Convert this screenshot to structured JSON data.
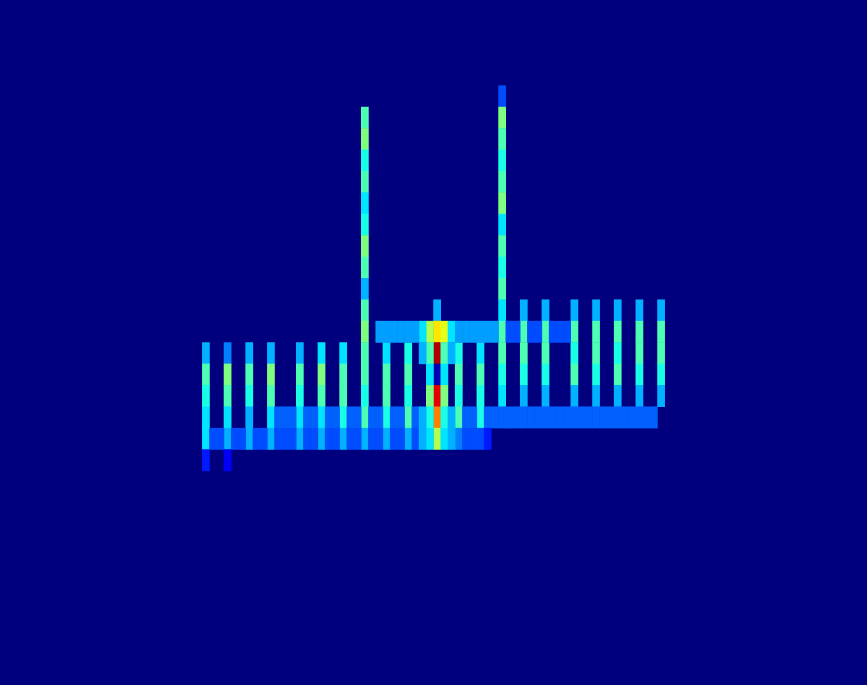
{
  "chart_data": {
    "type": "heatmap",
    "tick_labels": false,
    "columns": 120,
    "rows": 32,
    "color_range": [
      0,
      1
    ],
    "cells": [
      [
        50,
        5,
        0.45
      ],
      [
        50,
        6,
        0.5
      ],
      [
        50,
        7,
        0.4
      ],
      [
        50,
        8,
        0.45
      ],
      [
        50,
        9,
        0.35
      ],
      [
        50,
        10,
        0.4
      ],
      [
        50,
        11,
        0.5
      ],
      [
        50,
        12,
        0.45
      ],
      [
        50,
        13,
        0.3
      ],
      [
        50,
        14,
        0.45
      ],
      [
        50,
        15,
        0.5
      ],
      [
        69,
        4,
        0.2
      ],
      [
        69,
        5,
        0.5
      ],
      [
        69,
        6,
        0.45
      ],
      [
        69,
        7,
        0.4
      ],
      [
        69,
        8,
        0.45
      ],
      [
        69,
        9,
        0.5
      ],
      [
        69,
        10,
        0.35
      ],
      [
        69,
        11,
        0.45
      ],
      [
        69,
        12,
        0.4
      ],
      [
        69,
        13,
        0.45
      ],
      [
        28,
        16,
        0.3
      ],
      [
        28,
        17,
        0.45
      ],
      [
        28,
        18,
        0.4
      ],
      [
        28,
        19,
        0.35
      ],
      [
        28,
        20,
        0.35
      ],
      [
        31,
        16,
        0.25
      ],
      [
        31,
        17,
        0.5
      ],
      [
        31,
        18,
        0.45
      ],
      [
        31,
        19,
        0.35
      ],
      [
        31,
        20,
        0.3
      ],
      [
        34,
        16,
        0.3
      ],
      [
        34,
        17,
        0.45
      ],
      [
        34,
        18,
        0.4
      ],
      [
        34,
        19,
        0.3
      ],
      [
        34,
        20,
        0.3
      ],
      [
        37,
        16,
        0.3
      ],
      [
        37,
        17,
        0.5
      ],
      [
        37,
        18,
        0.45
      ],
      [
        37,
        19,
        0.35
      ],
      [
        37,
        20,
        0.3
      ],
      [
        41,
        16,
        0.3
      ],
      [
        41,
        17,
        0.45
      ],
      [
        41,
        18,
        0.4
      ],
      [
        41,
        19,
        0.35
      ],
      [
        41,
        20,
        0.3
      ],
      [
        44,
        16,
        0.35
      ],
      [
        44,
        17,
        0.5
      ],
      [
        44,
        18,
        0.45
      ],
      [
        44,
        19,
        0.35
      ],
      [
        44,
        20,
        0.3
      ],
      [
        47,
        16,
        0.35
      ],
      [
        47,
        17,
        0.45
      ],
      [
        47,
        18,
        0.45
      ],
      [
        47,
        19,
        0.4
      ],
      [
        47,
        20,
        0.3
      ],
      [
        50,
        16,
        0.45
      ],
      [
        50,
        17,
        0.45
      ],
      [
        50,
        18,
        0.4
      ],
      [
        50,
        19,
        0.45
      ],
      [
        50,
        20,
        0.3
      ],
      [
        53,
        16,
        0.35
      ],
      [
        53,
        17,
        0.45
      ],
      [
        53,
        18,
        0.45
      ],
      [
        53,
        19,
        0.4
      ],
      [
        53,
        20,
        0.3
      ],
      [
        56,
        16,
        0.4
      ],
      [
        56,
        17,
        0.45
      ],
      [
        56,
        18,
        0.4
      ],
      [
        56,
        19,
        0.45
      ],
      [
        56,
        20,
        0.3
      ],
      [
        63,
        16,
        0.4
      ],
      [
        63,
        17,
        0.45
      ],
      [
        63,
        18,
        0.4
      ],
      [
        63,
        19,
        0.45
      ],
      [
        63,
        20,
        0.25
      ],
      [
        66,
        16,
        0.35
      ],
      [
        66,
        17,
        0.45
      ],
      [
        66,
        18,
        0.4
      ],
      [
        66,
        19,
        0.4
      ],
      [
        66,
        20,
        0.2
      ],
      [
        69,
        14,
        0.35
      ],
      [
        69,
        15,
        0.45
      ],
      [
        69,
        16,
        0.45
      ],
      [
        69,
        17,
        0.4
      ],
      [
        69,
        18,
        0.35
      ],
      [
        72,
        14,
        0.3
      ],
      [
        72,
        15,
        0.45
      ],
      [
        72,
        16,
        0.45
      ],
      [
        72,
        17,
        0.4
      ],
      [
        72,
        18,
        0.3
      ],
      [
        75,
        14,
        0.3
      ],
      [
        75,
        15,
        0.45
      ],
      [
        75,
        16,
        0.45
      ],
      [
        75,
        17,
        0.4
      ],
      [
        75,
        18,
        0.3
      ],
      [
        79,
        14,
        0.3
      ],
      [
        79,
        15,
        0.45
      ],
      [
        79,
        16,
        0.4
      ],
      [
        79,
        17,
        0.45
      ],
      [
        79,
        18,
        0.3
      ],
      [
        82,
        14,
        0.3
      ],
      [
        82,
        15,
        0.45
      ],
      [
        82,
        16,
        0.45
      ],
      [
        82,
        17,
        0.4
      ],
      [
        82,
        18,
        0.3
      ],
      [
        85,
        14,
        0.3
      ],
      [
        85,
        15,
        0.45
      ],
      [
        85,
        16,
        0.4
      ],
      [
        85,
        17,
        0.45
      ],
      [
        85,
        18,
        0.3
      ],
      [
        88,
        14,
        0.3
      ],
      [
        88,
        15,
        0.45
      ],
      [
        88,
        16,
        0.45
      ],
      [
        88,
        17,
        0.4
      ],
      [
        88,
        18,
        0.3
      ],
      [
        91,
        14,
        0.3
      ],
      [
        91,
        15,
        0.45
      ],
      [
        91,
        16,
        0.45
      ],
      [
        91,
        17,
        0.4
      ],
      [
        91,
        18,
        0.3
      ],
      [
        60,
        14,
        0.3
      ],
      [
        60,
        15,
        0.65
      ],
      [
        60,
        16,
        0.95
      ],
      [
        60,
        17,
        0.05
      ],
      [
        60,
        18,
        0.9
      ],
      [
        60,
        19,
        0.75
      ],
      [
        60,
        20,
        0.55
      ],
      [
        59,
        15,
        0.55
      ],
      [
        59,
        16,
        0.45
      ],
      [
        59,
        17,
        0.35
      ],
      [
        59,
        18,
        0.5
      ],
      [
        59,
        19,
        0.4
      ],
      [
        59,
        20,
        0.35
      ],
      [
        61,
        15,
        0.6
      ],
      [
        61,
        16,
        0.45
      ],
      [
        61,
        17,
        0.35
      ],
      [
        61,
        18,
        0.5
      ],
      [
        61,
        19,
        0.4
      ],
      [
        61,
        20,
        0.35
      ],
      [
        58,
        15,
        0.35
      ],
      [
        58,
        16,
        0.3
      ],
      [
        62,
        15,
        0.35
      ],
      [
        62,
        16,
        0.3
      ],
      [
        38,
        19,
        0.22
      ],
      [
        39,
        19,
        0.22
      ],
      [
        40,
        19,
        0.22
      ],
      [
        42,
        19,
        0.22
      ],
      [
        43,
        19,
        0.22
      ],
      [
        45,
        19,
        0.22
      ],
      [
        46,
        19,
        0.22
      ],
      [
        48,
        19,
        0.22
      ],
      [
        49,
        19,
        0.22
      ],
      [
        51,
        19,
        0.22
      ],
      [
        52,
        19,
        0.22
      ],
      [
        54,
        19,
        0.22
      ],
      [
        55,
        19,
        0.22
      ],
      [
        57,
        19,
        0.22
      ],
      [
        58,
        19,
        0.3
      ],
      [
        62,
        19,
        0.3
      ],
      [
        64,
        19,
        0.22
      ],
      [
        65,
        19,
        0.22
      ],
      [
        67,
        19,
        0.22
      ],
      [
        68,
        19,
        0.22
      ],
      [
        69,
        19,
        0.22
      ],
      [
        70,
        19,
        0.22
      ],
      [
        71,
        19,
        0.22
      ],
      [
        72,
        19,
        0.22
      ],
      [
        73,
        19,
        0.22
      ],
      [
        74,
        19,
        0.22
      ],
      [
        75,
        19,
        0.22
      ],
      [
        76,
        19,
        0.22
      ],
      [
        77,
        19,
        0.22
      ],
      [
        78,
        19,
        0.22
      ],
      [
        79,
        19,
        0.22
      ],
      [
        80,
        19,
        0.22
      ],
      [
        81,
        19,
        0.22
      ],
      [
        82,
        19,
        0.22
      ],
      [
        83,
        19,
        0.22
      ],
      [
        84,
        19,
        0.22
      ],
      [
        85,
        19,
        0.22
      ],
      [
        86,
        19,
        0.22
      ],
      [
        87,
        19,
        0.22
      ],
      [
        88,
        19,
        0.22
      ],
      [
        89,
        19,
        0.22
      ],
      [
        90,
        19,
        0.22
      ],
      [
        29,
        20,
        0.2
      ],
      [
        30,
        20,
        0.2
      ],
      [
        32,
        20,
        0.2
      ],
      [
        33,
        20,
        0.2
      ],
      [
        35,
        20,
        0.2
      ],
      [
        36,
        20,
        0.2
      ],
      [
        38,
        20,
        0.2
      ],
      [
        39,
        20,
        0.2
      ],
      [
        40,
        20,
        0.2
      ],
      [
        42,
        20,
        0.2
      ],
      [
        43,
        20,
        0.2
      ],
      [
        45,
        20,
        0.2
      ],
      [
        46,
        20,
        0.2
      ],
      [
        48,
        20,
        0.2
      ],
      [
        49,
        20,
        0.2
      ],
      [
        51,
        20,
        0.2
      ],
      [
        52,
        20,
        0.2
      ],
      [
        54,
        20,
        0.2
      ],
      [
        55,
        20,
        0.2
      ],
      [
        57,
        20,
        0.2
      ],
      [
        58,
        20,
        0.3
      ],
      [
        62,
        20,
        0.3
      ],
      [
        64,
        20,
        0.2
      ],
      [
        65,
        20,
        0.2
      ],
      [
        67,
        20,
        0.15
      ],
      [
        52,
        15,
        0.28
      ],
      [
        53,
        15,
        0.28
      ],
      [
        54,
        15,
        0.28
      ],
      [
        55,
        15,
        0.28
      ],
      [
        56,
        15,
        0.28
      ],
      [
        57,
        15,
        0.28
      ],
      [
        63,
        15,
        0.28
      ],
      [
        64,
        15,
        0.28
      ],
      [
        65,
        15,
        0.28
      ],
      [
        66,
        15,
        0.28
      ],
      [
        67,
        15,
        0.28
      ],
      [
        68,
        15,
        0.28
      ],
      [
        70,
        15,
        0.2
      ],
      [
        71,
        15,
        0.2
      ],
      [
        73,
        15,
        0.2
      ],
      [
        74,
        15,
        0.2
      ],
      [
        76,
        15,
        0.2
      ],
      [
        77,
        15,
        0.2
      ],
      [
        78,
        15,
        0.2
      ],
      [
        28,
        21,
        0.15
      ],
      [
        31,
        21,
        0.12
      ]
    ]
  }
}
